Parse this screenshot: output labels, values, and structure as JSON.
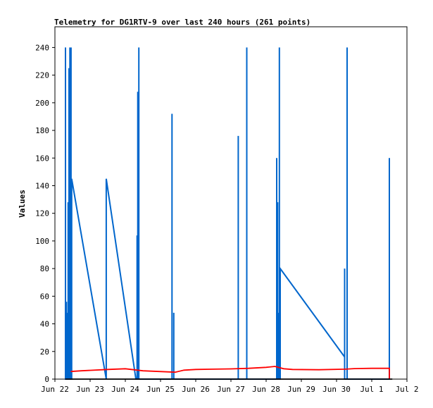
{
  "chart_data": {
    "type": "line",
    "title": "Telemetry for DG1RTV-9 over last 240 hours (261 points)",
    "ylabel": "Values",
    "xlabel": "",
    "ylim": [
      0,
      255
    ],
    "xlim": [
      "2022-06-22 00:00",
      "2022-07-02 00:00"
    ],
    "x_ticks": [
      "Jun 22",
      "Jun 23",
      "Jun 24",
      "Jun 25",
      "Jun 26",
      "Jun 27",
      "Jun 28",
      "Jun 29",
      "Jun 30",
      "Jul 1",
      "Jul 2"
    ],
    "y_ticks": [
      0,
      20,
      40,
      60,
      80,
      100,
      120,
      140,
      160,
      180,
      200,
      220,
      240
    ],
    "grid": false,
    "legend": "none",
    "series": [
      {
        "color": "#0066cc",
        "points": [
          [
            "2022-06-22 07:12",
            0
          ],
          [
            "2022-06-22 07:12",
            240
          ],
          [
            "2022-06-22 07:12",
            0
          ],
          [
            "2022-06-22 07:48",
            0
          ],
          [
            "2022-06-22 07:48",
            56
          ],
          [
            "2022-06-22 07:48",
            0
          ],
          [
            "2022-06-22 08:24",
            0
          ],
          [
            "2022-06-22 08:24",
            48
          ],
          [
            "2022-06-22 08:24",
            0
          ],
          [
            "2022-06-22 09:00",
            0
          ],
          [
            "2022-06-22 09:00",
            128
          ],
          [
            "2022-06-22 09:00",
            0
          ],
          [
            "2022-06-22 09:36",
            0
          ],
          [
            "2022-06-22 09:36",
            225
          ],
          [
            "2022-06-22 09:36",
            0
          ],
          [
            "2022-06-22 10:12",
            0
          ],
          [
            "2022-06-22 10:12",
            240
          ],
          [
            "2022-06-22 10:12",
            0
          ],
          [
            "2022-06-22 11:00",
            0
          ],
          [
            "2022-06-22 11:00",
            240
          ],
          [
            "2022-06-22 11:00",
            0
          ],
          [
            "2022-06-22 11:24",
            0
          ],
          [
            "2022-06-22 11:24",
            145
          ],
          [
            "2022-06-23 11:00",
            0
          ],
          [
            "2022-06-23 11:00",
            145
          ],
          [
            "2022-06-24 07:12",
            0
          ],
          [
            "2022-06-24 08:00",
            0
          ],
          [
            "2022-06-24 08:00",
            104
          ],
          [
            "2022-06-24 08:00",
            0
          ],
          [
            "2022-06-24 08:30",
            0
          ],
          [
            "2022-06-24 08:30",
            208
          ],
          [
            "2022-06-24 08:30",
            0
          ],
          [
            "2022-06-24 09:12",
            0
          ],
          [
            "2022-06-24 09:12",
            240
          ],
          [
            "2022-06-24 09:12",
            0
          ],
          [
            "2022-06-25 07:48",
            0
          ],
          [
            "2022-06-25 07:48",
            192
          ],
          [
            "2022-06-25 07:48",
            0
          ],
          [
            "2022-06-25 09:00",
            0
          ],
          [
            "2022-06-25 09:00",
            48
          ],
          [
            "2022-06-25 09:00",
            0
          ],
          [
            "2022-06-27 05:00",
            0
          ],
          [
            "2022-06-27 05:00",
            176
          ],
          [
            "2022-06-27 05:00",
            0
          ],
          [
            "2022-06-27 10:48",
            0
          ],
          [
            "2022-06-27 10:48",
            240
          ],
          [
            "2022-06-27 10:48",
            0
          ],
          [
            "2022-06-28 07:12",
            0
          ],
          [
            "2022-06-28 07:12",
            160
          ],
          [
            "2022-06-28 07:12",
            0
          ],
          [
            "2022-06-28 07:48",
            0
          ],
          [
            "2022-06-28 07:48",
            128
          ],
          [
            "2022-06-28 07:48",
            0
          ],
          [
            "2022-06-28 08:24",
            0
          ],
          [
            "2022-06-28 08:24",
            48
          ],
          [
            "2022-06-28 08:24",
            0
          ],
          [
            "2022-06-28 09:00",
            0
          ],
          [
            "2022-06-28 09:00",
            240
          ],
          [
            "2022-06-28 09:00",
            0
          ],
          [
            "2022-06-28 09:36",
            0
          ],
          [
            "2022-06-28 09:36",
            80
          ],
          [
            "2022-06-30 05:30",
            16
          ],
          [
            "2022-06-30 05:30",
            0
          ],
          [
            "2022-06-30 05:30",
            80
          ],
          [
            "2022-06-30 05:30",
            0
          ],
          [
            "2022-06-30 07:12",
            0
          ],
          [
            "2022-06-30 07:12",
            240
          ],
          [
            "2022-06-30 07:12",
            0
          ],
          [
            "2022-07-01 12:00",
            0
          ],
          [
            "2022-07-01 12:00",
            160
          ],
          [
            "2022-07-01 12:00",
            0
          ]
        ]
      },
      {
        "color": "#ff0000",
        "points": [
          [
            "2022-06-22 10:48",
            5.5
          ],
          [
            "2022-06-22 18:00",
            6
          ],
          [
            "2022-06-23 12:00",
            7
          ],
          [
            "2022-06-24 00:00",
            7.5
          ],
          [
            "2022-06-24 12:00",
            6
          ],
          [
            "2022-06-25 10:00",
            5
          ],
          [
            "2022-06-25 16:00",
            6.5
          ],
          [
            "2022-06-26 00:00",
            7
          ],
          [
            "2022-06-26 12:00",
            7.2
          ],
          [
            "2022-06-27 00:00",
            7.4
          ],
          [
            "2022-06-27 12:00",
            7.8
          ],
          [
            "2022-06-28 00:00",
            8.5
          ],
          [
            "2022-06-28 06:00",
            9.2
          ],
          [
            "2022-06-28 12:00",
            7.5
          ],
          [
            "2022-06-28 18:00",
            7
          ],
          [
            "2022-06-29 12:00",
            6.8
          ],
          [
            "2022-06-30 06:00",
            7.2
          ],
          [
            "2022-06-30 12:00",
            7.6
          ],
          [
            "2022-07-01 00:00",
            7.8
          ],
          [
            "2022-07-01 12:00",
            7.8
          ],
          [
            "2022-07-01 12:00",
            0
          ]
        ]
      },
      {
        "color": "#000000",
        "points": [
          [
            "2022-06-22 07:12",
            0
          ],
          [
            "2022-07-01 14:00",
            0
          ]
        ]
      }
    ]
  }
}
